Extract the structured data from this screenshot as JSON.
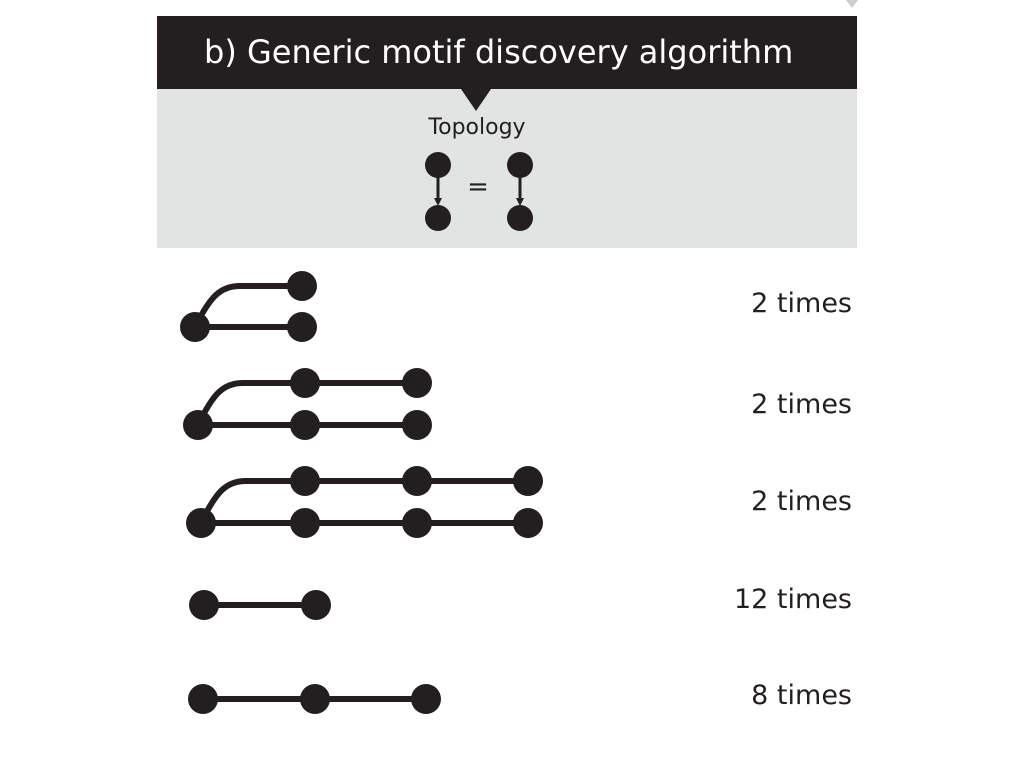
{
  "header": {
    "title": "b) Generic motif discovery algorithm"
  },
  "topology": {
    "label": "Topology",
    "equals": "="
  },
  "motifs": [
    {
      "count_label": "2 times"
    },
    {
      "count_label": "2 times"
    },
    {
      "count_label": "2 times"
    },
    {
      "count_label": "12 times"
    },
    {
      "count_label": "8 times"
    }
  ],
  "colors": {
    "dark": "#231f20",
    "panel": "#e2e3e3",
    "background": "#ffffff"
  }
}
